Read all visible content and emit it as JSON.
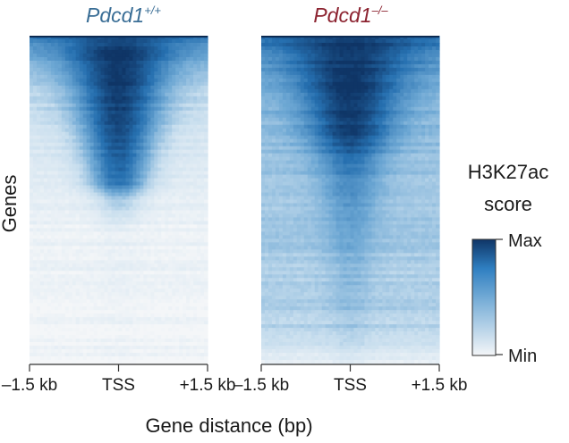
{
  "chart_data": [
    {
      "type": "heatmap",
      "title_main": "Pdcd1",
      "title_sup": "+/+",
      "title_color": "#3a6e96",
      "ylabel": "Genes",
      "xlabel": "Gene distance (bp)",
      "x_tick_labels": [
        "–1.5 kb",
        "TSS",
        "+1.5 kb"
      ],
      "x_range_bp": [
        -1500,
        1500
      ],
      "signal_profile": {
        "description_rows": "rows sorted top to bottom, 0=top 1=bottom",
        "row_positions": [
          0.0,
          0.05,
          0.15,
          0.3,
          0.45,
          0.5,
          0.6,
          1.0
        ],
        "center_intensity": [
          0.9,
          1.0,
          0.98,
          0.9,
          0.75,
          0.35,
          0.08,
          0.03
        ],
        "flank_intensity": [
          0.7,
          0.5,
          0.3,
          0.18,
          0.12,
          0.08,
          0.05,
          0.02
        ],
        "center_width_fraction": [
          0.45,
          0.42,
          0.36,
          0.3,
          0.24,
          0.2,
          0.15,
          0.15
        ]
      }
    },
    {
      "type": "heatmap",
      "title_main": "Pdcd1",
      "title_sup": "–/–",
      "title_color": "#8c2330",
      "xlabel": "Gene distance (bp)",
      "x_tick_labels": [
        "–1.5 kb",
        "TSS",
        "+1.5 kb"
      ],
      "x_range_bp": [
        -1500,
        1500
      ],
      "signal_profile": {
        "row_positions": [
          0.0,
          0.05,
          0.15,
          0.3,
          0.4,
          0.6,
          0.9,
          1.0
        ],
        "center_intensity": [
          0.95,
          1.0,
          1.0,
          0.95,
          0.7,
          0.5,
          0.35,
          0.1
        ],
        "flank_intensity": [
          0.75,
          0.6,
          0.45,
          0.4,
          0.38,
          0.35,
          0.3,
          0.05
        ],
        "center_width_fraction": [
          0.5,
          0.48,
          0.4,
          0.32,
          0.26,
          0.2,
          0.15,
          0.15
        ]
      }
    }
  ],
  "colorbar": {
    "title_line1": "H3K27ac",
    "title_line2": "score",
    "max_label": "Max",
    "min_label": "Min",
    "color_max": "#0f3566",
    "color_mid": "#2f7fc1",
    "color_min": "#f4f6f8"
  }
}
